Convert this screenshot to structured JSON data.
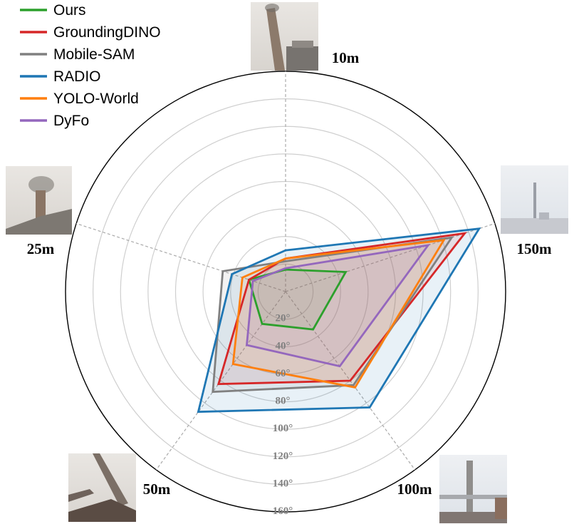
{
  "chart_data": {
    "type": "radar",
    "axes": [
      "10m",
      "150m",
      "100m",
      "50m",
      "25m"
    ],
    "radial_ticks": [
      "20°",
      "40°",
      "60°",
      "80°",
      "100°",
      "120°",
      "140°",
      "160°"
    ],
    "rlim": [
      0,
      160
    ],
    "grid": true,
    "legend_position": "top-left",
    "series": [
      {
        "name": "Ours",
        "color": "#2ca02c",
        "values": [
          16,
          46,
          34,
          29,
          28
        ]
      },
      {
        "name": "GroundingDINO",
        "color": "#d62728",
        "values": [
          24,
          137,
          80,
          83,
          28
        ]
      },
      {
        "name": "Mobile-SAM",
        "color": "#808080",
        "values": [
          22,
          127,
          84,
          90,
          48
        ]
      },
      {
        "name": "RADIO",
        "color": "#1f77b4",
        "values": [
          30,
          148,
          104,
          108,
          41
        ]
      },
      {
        "name": "YOLO-World",
        "color": "#ff7f0e",
        "values": [
          24,
          121,
          86,
          65,
          33
        ]
      },
      {
        "name": "DyFo",
        "color": "#9467bd",
        "values": [
          17,
          109,
          67,
          48,
          25
        ]
      }
    ],
    "images": [
      {
        "axis": "10m",
        "description": "chimney-photo"
      },
      {
        "axis": "150m",
        "description": "chimney-photo"
      },
      {
        "axis": "100m",
        "description": "chimney-photo"
      },
      {
        "axis": "50m",
        "description": "chimney-photo"
      },
      {
        "axis": "25m",
        "description": "chimney-photo"
      }
    ]
  }
}
